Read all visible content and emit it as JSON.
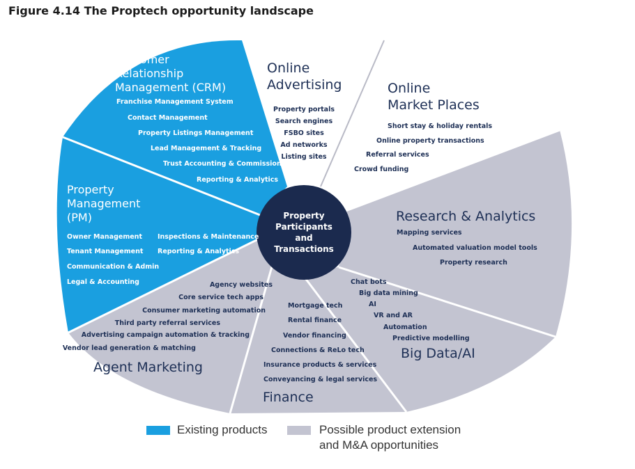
{
  "title": "Figure 4.14 The Proptech opportunity landscape",
  "colors": {
    "existing": "#1a9fe0",
    "possible": "#c3c4d1",
    "center": "#1b2a4e",
    "divider": "#ffffff",
    "text_dark": "#1d2f55",
    "text_light": "#ffffff"
  },
  "center_label": [
    "Property",
    "Participants",
    "and",
    "Transactions"
  ],
  "segments": [
    {
      "id": "crm",
      "status": "existing",
      "title": [
        "Customer",
        "Relationship",
        "Management (CRM)"
      ],
      "items": [
        "Franchise Management System",
        "Contact Management",
        "Property Listings Management",
        "Lead Management & Tracking",
        "Trust Accounting & Commissions",
        "Reporting & Analytics"
      ]
    },
    {
      "id": "online-advertising",
      "status": "none",
      "title": [
        "Online",
        "Advertising"
      ],
      "items": [
        "Property portals",
        "Search engines",
        "FSBO sites",
        "Ad networks",
        "Listing sites"
      ]
    },
    {
      "id": "online-market-places",
      "status": "none",
      "title": [
        "Online",
        "Market Places"
      ],
      "items": [
        "Short stay & holiday rentals",
        "Online property transactions",
        "Referral services",
        "Crowd funding"
      ]
    },
    {
      "id": "research-analytics",
      "status": "possible",
      "title": [
        "Research & Analytics"
      ],
      "items": [
        "Mapping services",
        "Automated valuation model tools",
        "Property research"
      ]
    },
    {
      "id": "big-data-ai",
      "status": "possible",
      "title": [
        "Big Data/AI"
      ],
      "items": [
        "Chat bots",
        "Big data mining",
        "AI",
        "VR and AR",
        "Automation",
        "Predictive modelling"
      ]
    },
    {
      "id": "finance",
      "status": "possible",
      "title": [
        "Finance"
      ],
      "items": [
        "Mortgage tech",
        "Rental finance",
        "Vendor financing",
        "Connections & ReLo tech",
        "Insurance products & services",
        "Conveyancing & legal services"
      ]
    },
    {
      "id": "agent-marketing",
      "status": "possible",
      "title": [
        "Agent Marketing"
      ],
      "items": [
        "Agency websites",
        "Core service tech apps",
        "Consumer marketing automation",
        "Third party referral services",
        "Advertising campaign automation & tracking",
        "Vendor lead generation & matching"
      ]
    },
    {
      "id": "property-management",
      "status": "existing",
      "title": [
        "Property",
        "Management",
        "(PM)"
      ],
      "items": [
        "Owner Management",
        "Tenant Management",
        "Communication & Admin",
        "Legal & Accounting",
        "Inspections & Maintenance",
        "Reporting & Analytics"
      ]
    }
  ],
  "legend": {
    "existing_label": "Existing products",
    "possible_label_line1": "Possible product extension",
    "possible_label_line2": "and M&A opportunities"
  }
}
